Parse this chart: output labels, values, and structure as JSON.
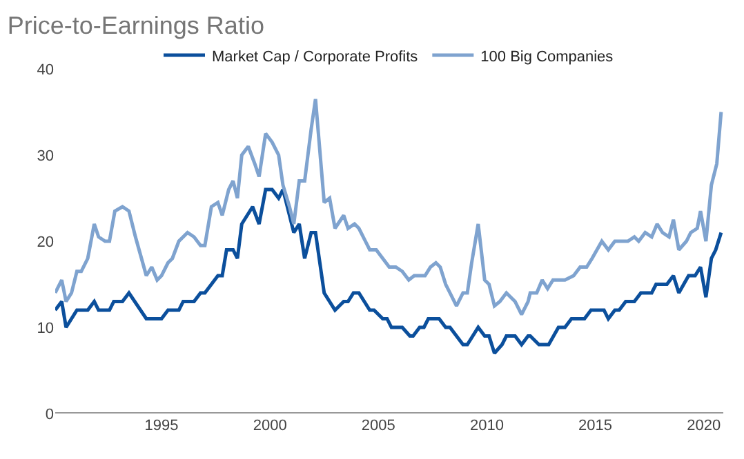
{
  "chart_data": {
    "type": "line",
    "title": "Price-to-Earnings Ratio",
    "xlim": [
      1990.1,
      2020.9
    ],
    "xticks": [
      1995,
      2000,
      2005,
      2010,
      2015,
      2020
    ],
    "ylim": [
      0,
      40
    ],
    "yticks": [
      0,
      10,
      20,
      30,
      40
    ],
    "grid": false,
    "legend": "top",
    "marker": "none",
    "line_style": "solid",
    "series": [
      {
        "name": "Market Cap / Corporate Profits",
        "color": "#0b4f9c",
        "x": [
          1990.1,
          1990.4,
          1990.6,
          1991.1,
          1991.6,
          1991.9,
          1992.1,
          1992.6,
          1992.8,
          1993.2,
          1993.5,
          1994.3,
          1995.0,
          1995.3,
          1995.8,
          1996.0,
          1996.5,
          1996.8,
          1997.0,
          1997.6,
          1997.8,
          1998.0,
          1998.3,
          1998.5,
          1998.7,
          1999.2,
          1999.5,
          1999.8,
          2000.1,
          2000.4,
          2000.6,
          2001.1,
          2001.35,
          2001.6,
          2001.9,
          2002.1,
          2002.5,
          2003.0,
          2003.4,
          2003.6,
          2003.85,
          2004.1,
          2004.6,
          2004.8,
          2005.2,
          2005.4,
          2005.6,
          2006.1,
          2006.45,
          2006.6,
          2006.9,
          2007.1,
          2007.3,
          2007.8,
          2008.1,
          2008.3,
          2008.9,
          2009.1,
          2009.6,
          2009.9,
          2010.1,
          2010.35,
          2010.7,
          2010.9,
          2011.3,
          2011.6,
          2011.9,
          2012.0,
          2012.4,
          2012.85,
          2013.3,
          2013.6,
          2013.9,
          2014.5,
          2014.8,
          2015.4,
          2015.6,
          2015.9,
          2016.1,
          2016.4,
          2016.8,
          2017.1,
          2017.6,
          2017.8,
          2018.3,
          2018.6,
          2018.85,
          2019.3,
          2019.6,
          2019.85,
          2020.1,
          2020.35,
          2020.55,
          2020.8
        ],
        "values": [
          12,
          13,
          10,
          12,
          12,
          13,
          12,
          12,
          13,
          13,
          14,
          11,
          11,
          12,
          12,
          13,
          13,
          14,
          14,
          16,
          16,
          19,
          19,
          18,
          22,
          24,
          22,
          26,
          26,
          25,
          26,
          21,
          22,
          18,
          21,
          21,
          14,
          12,
          13,
          13,
          14,
          14,
          12,
          12,
          11,
          11,
          10,
          10,
          9,
          9,
          10,
          10,
          11,
          11,
          10,
          10,
          8,
          8,
          10,
          9,
          9,
          7,
          8,
          9,
          9,
          8,
          9,
          9,
          8,
          8,
          10,
          10,
          11,
          11,
          12,
          12,
          11,
          12,
          12,
          13,
          13,
          14,
          14,
          15,
          15,
          16,
          14,
          16,
          16,
          17,
          13.5,
          18,
          19,
          21
        ]
      },
      {
        "name": "100 Big Companies",
        "color": "#7fa3cf",
        "x": [
          1990.1,
          1990.4,
          1990.6,
          1990.85,
          1991.1,
          1991.3,
          1991.6,
          1991.9,
          1992.1,
          1992.4,
          1992.6,
          1992.85,
          1993.2,
          1993.5,
          1993.8,
          1994.3,
          1994.55,
          1994.8,
          1995.0,
          1995.3,
          1995.5,
          1995.8,
          1996.2,
          1996.5,
          1996.8,
          1997.0,
          1997.3,
          1997.6,
          1997.8,
          1998.1,
          1998.3,
          1998.5,
          1998.7,
          1999.0,
          1999.3,
          1999.5,
          1999.8,
          2000.1,
          2000.4,
          2000.6,
          2000.9,
          2001.1,
          2001.35,
          2001.6,
          2001.9,
          2002.1,
          2002.5,
          2002.75,
          2003.0,
          2003.4,
          2003.6,
          2003.9,
          2004.1,
          2004.4,
          2004.6,
          2004.9,
          2005.2,
          2005.5,
          2005.8,
          2006.1,
          2006.4,
          2006.65,
          2006.9,
          2007.15,
          2007.4,
          2007.65,
          2007.85,
          2008.1,
          2008.3,
          2008.6,
          2008.9,
          2009.1,
          2009.3,
          2009.6,
          2009.9,
          2010.1,
          2010.35,
          2010.6,
          2010.9,
          2011.1,
          2011.3,
          2011.6,
          2011.9,
          2012.0,
          2012.3,
          2012.55,
          2012.8,
          2013.05,
          2013.6,
          2014.0,
          2014.3,
          2014.6,
          2014.85,
          2015.3,
          2015.6,
          2015.9,
          2016.2,
          2016.5,
          2016.8,
          2017.0,
          2017.3,
          2017.6,
          2017.85,
          2018.1,
          2018.4,
          2018.6,
          2018.85,
          2019.2,
          2019.4,
          2019.7,
          2019.85,
          2020.1,
          2020.35,
          2020.6,
          2020.8
        ],
        "values": [
          14,
          15.5,
          13,
          14,
          16.5,
          16.5,
          18,
          22,
          20.5,
          20,
          20,
          23.5,
          24,
          23.5,
          20.5,
          16,
          17,
          15.5,
          16,
          17.5,
          18,
          20,
          21,
          20.5,
          19.5,
          19.5,
          24,
          24.5,
          23,
          26,
          27,
          25,
          30,
          31,
          29,
          27.5,
          32.5,
          31.5,
          30,
          26.5,
          24,
          22,
          27,
          27,
          33,
          36.5,
          24.5,
          25,
          21.5,
          23,
          21.5,
          22,
          21.5,
          20,
          19,
          19,
          18,
          17,
          17,
          16.5,
          15.5,
          16,
          16,
          16,
          17,
          17.5,
          17,
          15,
          14,
          12.5,
          14,
          14,
          17.5,
          22,
          15.5,
          15,
          12.5,
          13,
          14,
          13.5,
          13,
          11.5,
          13,
          14,
          14,
          15.5,
          14.5,
          15.5,
          15.5,
          16,
          17,
          17,
          18,
          20,
          19,
          20,
          20,
          20,
          20.5,
          20,
          21,
          20.5,
          22,
          21,
          20.5,
          22.5,
          19,
          20,
          21,
          21.5,
          23.5,
          20,
          26.5,
          29,
          35
        ]
      }
    ]
  }
}
